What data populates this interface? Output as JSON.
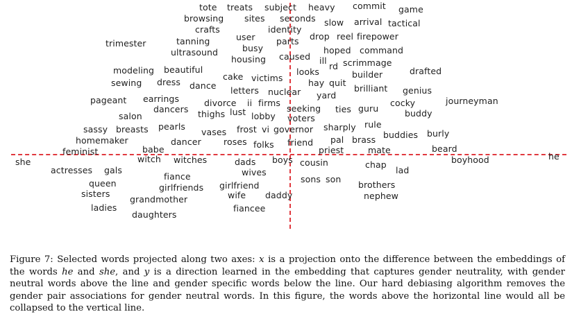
{
  "figure": {
    "words": [
      {
        "text": "tote"
      },
      {
        "text": "treats"
      },
      {
        "text": "subject"
      },
      {
        "text": "heavy"
      },
      {
        "text": "commit"
      },
      {
        "text": "game"
      },
      {
        "text": "browsing"
      },
      {
        "text": "sites"
      },
      {
        "text": "seconds"
      },
      {
        "text": "slow"
      },
      {
        "text": "arrival"
      },
      {
        "text": "tactical"
      },
      {
        "text": "crafts"
      },
      {
        "text": "identity"
      },
      {
        "text": "trimester"
      },
      {
        "text": "tanning"
      },
      {
        "text": "user"
      },
      {
        "text": "parts"
      },
      {
        "text": "drop"
      },
      {
        "text": "reel"
      },
      {
        "text": "firepower"
      },
      {
        "text": "ultrasound"
      },
      {
        "text": "busy"
      },
      {
        "text": "hoped"
      },
      {
        "text": "command"
      },
      {
        "text": "housing"
      },
      {
        "text": "caused"
      },
      {
        "text": "ill"
      },
      {
        "text": "rd"
      },
      {
        "text": "scrimmage"
      },
      {
        "text": "modeling"
      },
      {
        "text": "beautiful"
      },
      {
        "text": "looks"
      },
      {
        "text": "builder"
      },
      {
        "text": "drafted"
      },
      {
        "text": "cake"
      },
      {
        "text": "victims"
      },
      {
        "text": "hay"
      },
      {
        "text": "quit"
      },
      {
        "text": "sewing"
      },
      {
        "text": "dress"
      },
      {
        "text": "dance"
      },
      {
        "text": "letters"
      },
      {
        "text": "nuclear"
      },
      {
        "text": "brilliant"
      },
      {
        "text": "genius"
      },
      {
        "text": "yard"
      },
      {
        "text": "pageant"
      },
      {
        "text": "earrings"
      },
      {
        "text": "divorce"
      },
      {
        "text": "ii"
      },
      {
        "text": "firms"
      },
      {
        "text": "cocky"
      },
      {
        "text": "journeyman"
      },
      {
        "text": "dancers"
      },
      {
        "text": "seeking"
      },
      {
        "text": "ties"
      },
      {
        "text": "guru"
      },
      {
        "text": "salon"
      },
      {
        "text": "thighs"
      },
      {
        "text": "lust"
      },
      {
        "text": "lobby"
      },
      {
        "text": "voters"
      },
      {
        "text": "buddy"
      },
      {
        "text": "sassy"
      },
      {
        "text": "breasts"
      },
      {
        "text": "pearls"
      },
      {
        "text": "vases"
      },
      {
        "text": "frost"
      },
      {
        "text": "vi"
      },
      {
        "text": "governor"
      },
      {
        "text": "sharply"
      },
      {
        "text": "rule"
      },
      {
        "text": "buddies"
      },
      {
        "text": "burly"
      },
      {
        "text": "homemaker"
      },
      {
        "text": "dancer"
      },
      {
        "text": "roses"
      },
      {
        "text": "folks"
      },
      {
        "text": "friend"
      },
      {
        "text": "pal"
      },
      {
        "text": "brass"
      },
      {
        "text": "feminist"
      },
      {
        "text": "babe"
      },
      {
        "text": "priest"
      },
      {
        "text": "mate"
      },
      {
        "text": "beard"
      },
      {
        "text": "she"
      },
      {
        "text": "witch"
      },
      {
        "text": "witches"
      },
      {
        "text": "dads"
      },
      {
        "text": "boys"
      },
      {
        "text": "cousin"
      },
      {
        "text": "chap"
      },
      {
        "text": "boyhood"
      },
      {
        "text": "he"
      },
      {
        "text": "actresses"
      },
      {
        "text": "gals"
      },
      {
        "text": "wives"
      },
      {
        "text": "lad"
      },
      {
        "text": "fiance"
      },
      {
        "text": "sons"
      },
      {
        "text": "son"
      },
      {
        "text": "queen"
      },
      {
        "text": "girlfriends"
      },
      {
        "text": "girlfriend"
      },
      {
        "text": "brothers"
      },
      {
        "text": "sisters"
      },
      {
        "text": "wife"
      },
      {
        "text": "daddy"
      },
      {
        "text": "nephew"
      },
      {
        "text": "grandmother"
      },
      {
        "text": "ladies"
      },
      {
        "text": "fiancee"
      },
      {
        "text": "daughters"
      }
    ]
  },
  "caption": {
    "label": "Figure 7:",
    "p1": " Selected words projected along two axes: ",
    "x_var": "x",
    "p2": " is a projection onto the difference between the embeddings of the words ",
    "he": "he",
    "p3": " and ",
    "she": "she",
    "p4": ", and ",
    "y_var": "y",
    "p5": " is a direction learned in the embedding that captures gender neutrality, with gender neutral words above the line and gender specific words below the line. Our hard debiasing algorithm removes the gender pair associations for gender neutral words. In this figure, the words above the horizontal line would all be collapsed to the vertical line."
  }
}
